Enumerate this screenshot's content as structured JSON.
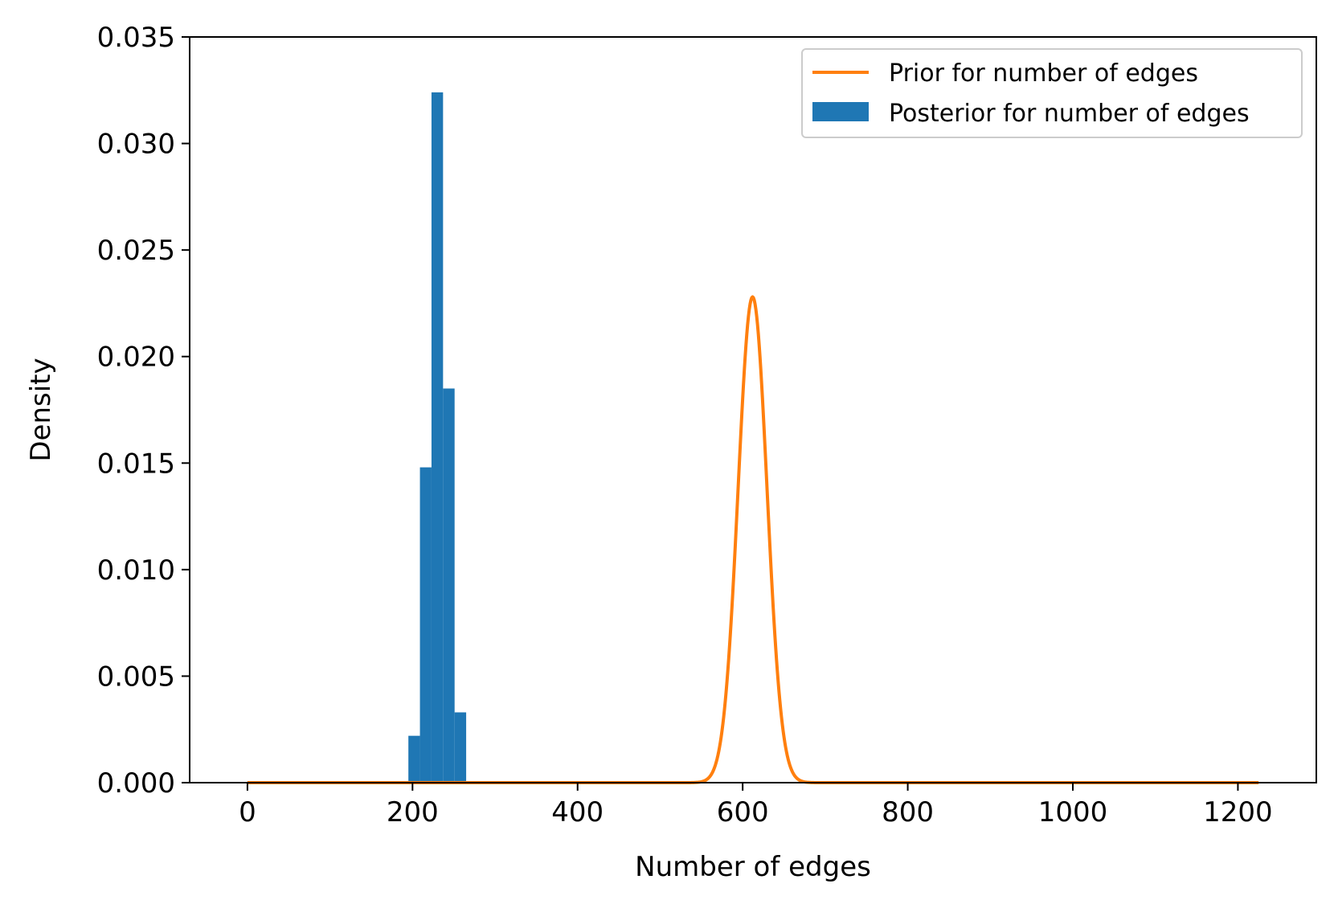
{
  "chart_data": {
    "type": "bar",
    "title": "",
    "xlabel": "Number of edges",
    "ylabel": "Density",
    "xlim": [
      -70,
      1295
    ],
    "ylim": [
      0,
      0.035
    ],
    "xticks": [
      0,
      200,
      400,
      600,
      800,
      1000,
      1200
    ],
    "xtick_labels": [
      "0",
      "200",
      "400",
      "600",
      "800",
      "1000",
      "1200"
    ],
    "yticks": [
      0,
      0.005,
      0.01,
      0.015,
      0.02,
      0.025,
      0.03,
      0.035
    ],
    "ytick_labels": [
      "0.000",
      "0.005",
      "0.010",
      "0.015",
      "0.020",
      "0.025",
      "0.030",
      "0.035"
    ],
    "grid": false,
    "legend_position": "top-right",
    "series": [
      {
        "name": "Prior for number of edges",
        "type": "line",
        "color": "#ff7f0e",
        "distribution": "normal",
        "mean": 612,
        "std": 17.5,
        "x_range": [
          0,
          1225
        ],
        "peak_density": 0.0228
      },
      {
        "name": "Posterior for number of edges",
        "type": "histogram",
        "color": "#1f77b4",
        "bins": [
          {
            "x0": 195,
            "x1": 209,
            "density": 0.0022
          },
          {
            "x0": 209,
            "x1": 223,
            "density": 0.0148
          },
          {
            "x0": 223,
            "x1": 237,
            "density": 0.0324
          },
          {
            "x0": 237,
            "x1": 251,
            "density": 0.0185
          },
          {
            "x0": 251,
            "x1": 265,
            "density": 0.0033
          }
        ]
      }
    ]
  }
}
